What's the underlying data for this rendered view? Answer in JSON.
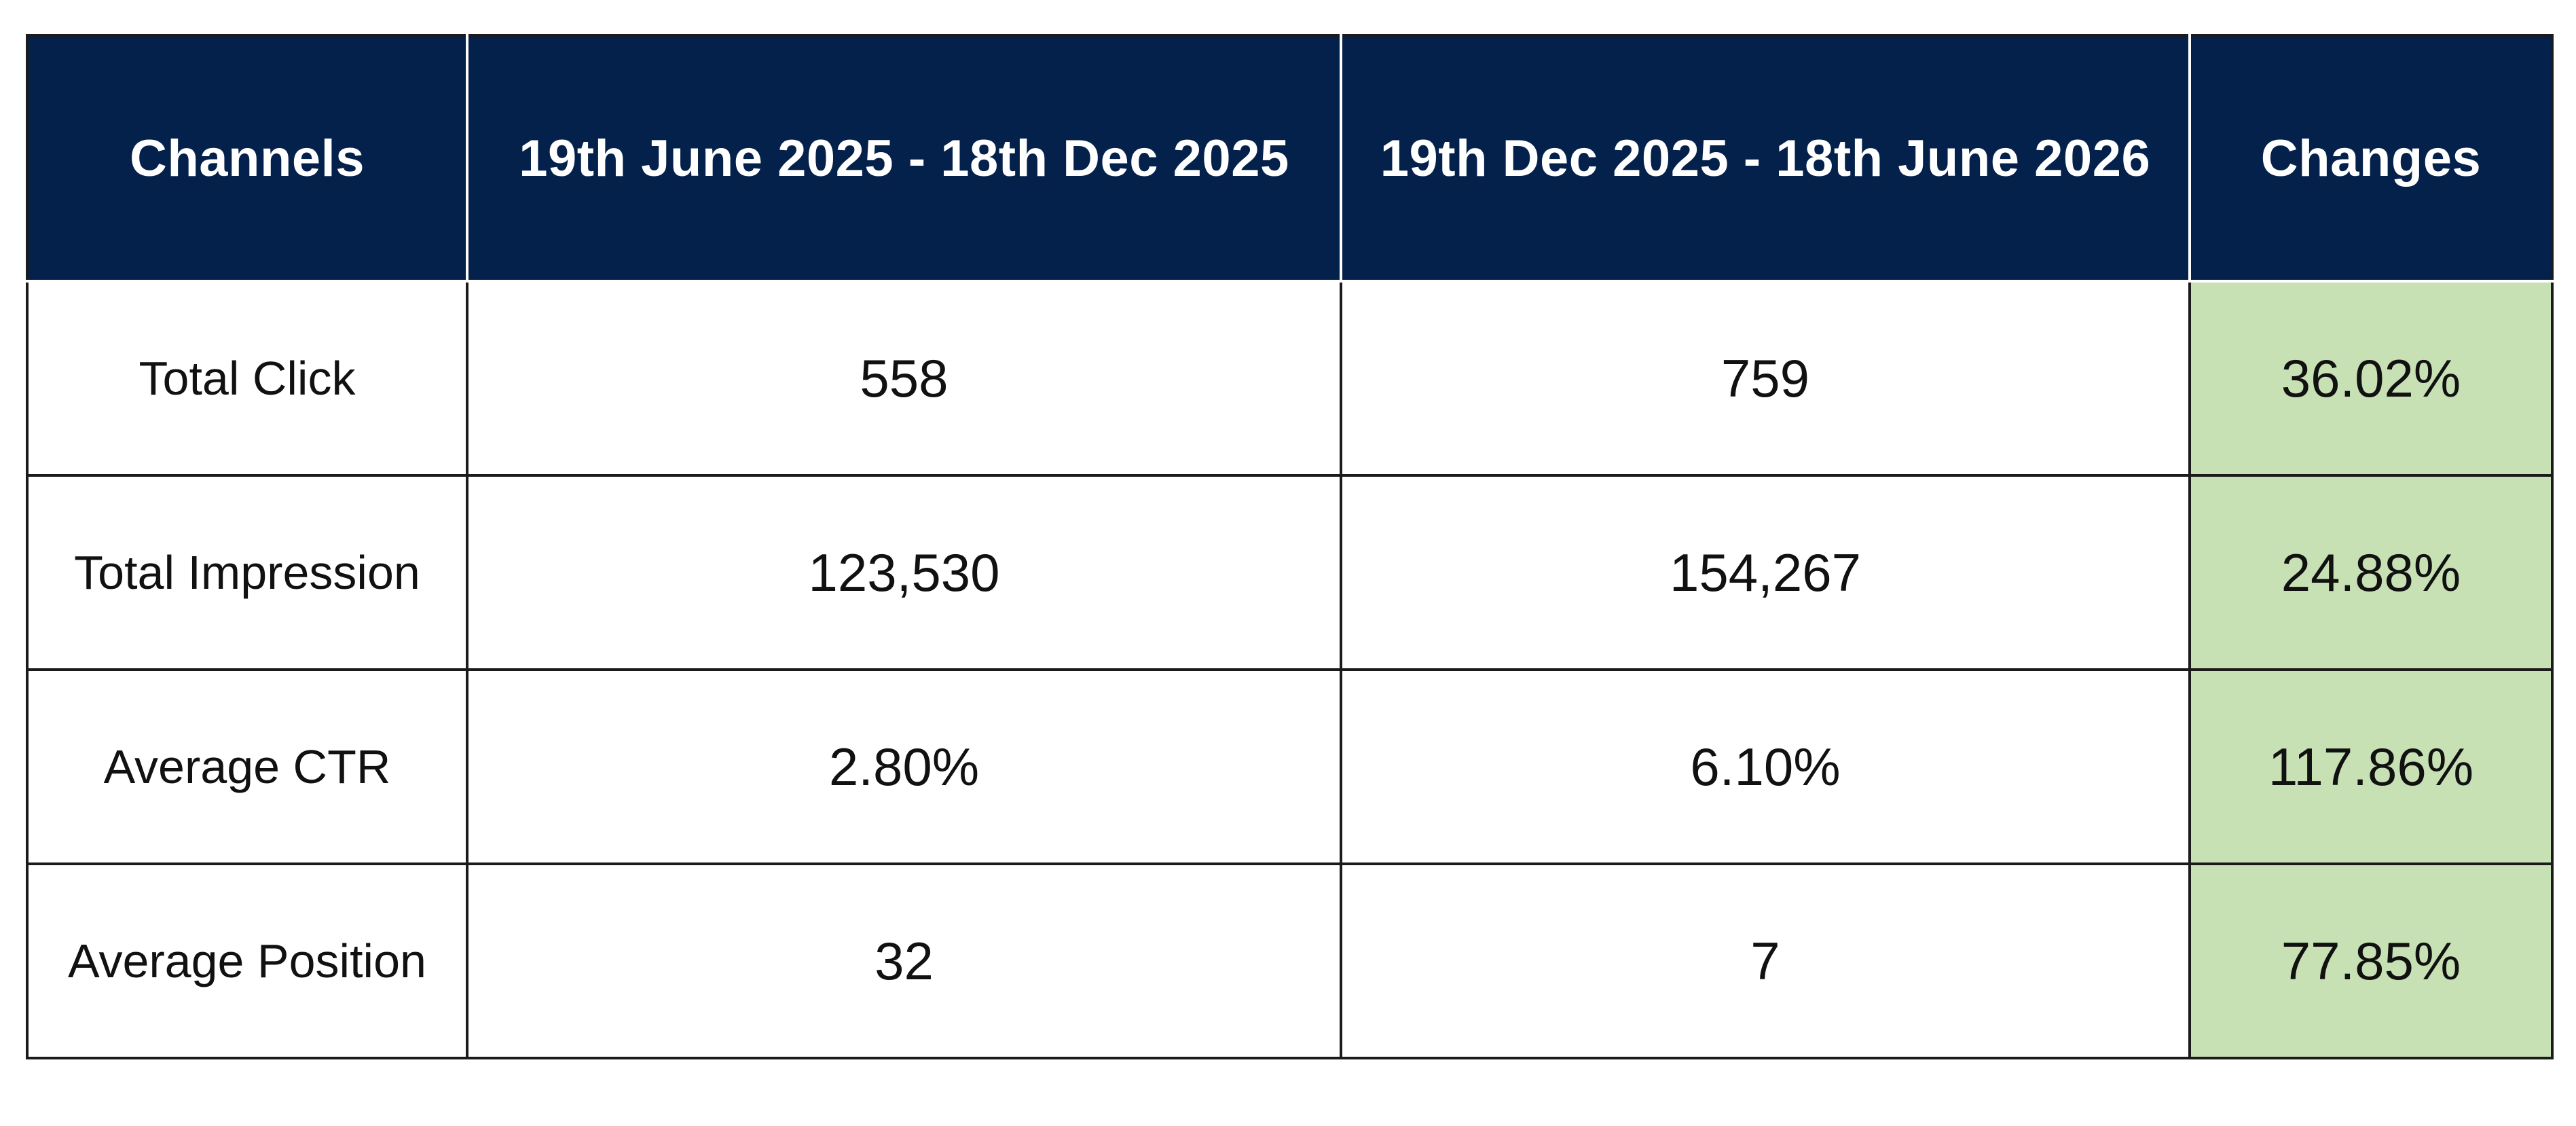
{
  "colors": {
    "header_bg": "#04214c",
    "header_text": "#ffffff",
    "change_bg": "#c7e1b4",
    "border": "#1b1b1b"
  },
  "chart_data": {
    "type": "table",
    "columns": [
      "Channels",
      "19th June 2025 - 18th Dec 2025",
      "19th Dec 2025 - 18th June 2026",
      "Changes"
    ],
    "rows": [
      [
        "Total Click",
        "558",
        "759",
        "36.02%"
      ],
      [
        "Total Impression",
        "123,530",
        "154,267",
        "24.88%"
      ],
      [
        "Average CTR",
        "2.80%",
        "6.10%",
        "117.86%"
      ],
      [
        "Average Position",
        "32",
        "7",
        "77.85%"
      ]
    ]
  }
}
